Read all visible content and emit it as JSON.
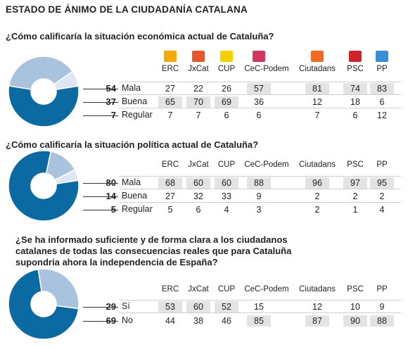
{
  "title": "ESTADO DE ÁNIMO DE LA CIUDADANÍA CATALANA",
  "colors": {
    "mala": "#0a6aa1",
    "buena": "#a9c2dd",
    "regular": "#dde7f1",
    "highlight": "#e3e3e3"
  },
  "parties": [
    "ERC",
    "JxCat",
    "CUP",
    "CeC-Podem",
    "Ciutadans",
    "PSC",
    "PP"
  ],
  "party_logo_colors": [
    "#f2a900",
    "#e8562b",
    "#f5d000",
    "#d2375c",
    "#f26a21",
    "#d2232a",
    "#3a8ed6"
  ],
  "chart_data": [
    {
      "type": "pie",
      "question": "¿Cómo calificaría la situación económica actual de Cataluña?",
      "categories": [
        "Mala",
        "Buena",
        "Regular"
      ],
      "values": [
        54,
        37,
        7
      ],
      "value_labels": [
        "54",
        "37",
        "7"
      ],
      "by_party": {
        "Mala": [
          "27",
          "22",
          "26",
          "57",
          "81",
          "74",
          "83"
        ],
        "Buena": [
          "65",
          "70",
          "69",
          "36",
          "12",
          "18",
          "6"
        ],
        "Regular": [
          "7",
          "7",
          "6",
          "6",
          "7",
          "6",
          "12"
        ]
      }
    },
    {
      "type": "pie",
      "question": "¿Cómo calificaría la situación política actual de Cataluña?",
      "categories": [
        "Mala",
        "Buena",
        "Regular"
      ],
      "values": [
        80,
        14,
        5
      ],
      "value_labels": [
        "80",
        "14",
        "5"
      ],
      "by_party": {
        "Mala": [
          "68",
          "60",
          "60",
          "88",
          "96",
          "97",
          "95"
        ],
        "Buena": [
          "27",
          "32",
          "33",
          "9",
          "2",
          "2",
          "2"
        ],
        "Regular": [
          "5",
          "6",
          "4",
          "3",
          "2",
          "1",
          "4"
        ]
      }
    },
    {
      "type": "pie",
      "question": "¿Se ha informado suficiente y de forma clara a los ciudadanos catalanes de todas las consecuencias reales que para Cataluña supondría ahora la independencia de España?",
      "categories": [
        "Sí",
        "No"
      ],
      "values": [
        29,
        69
      ],
      "value_labels": [
        "29",
        "69"
      ],
      "by_party": {
        "Sí": [
          "53",
          "60",
          "52",
          "15",
          "12",
          "10",
          "9"
        ],
        "No": [
          "44",
          "38",
          "46",
          "85",
          "87",
          "90",
          "88"
        ]
      }
    }
  ]
}
